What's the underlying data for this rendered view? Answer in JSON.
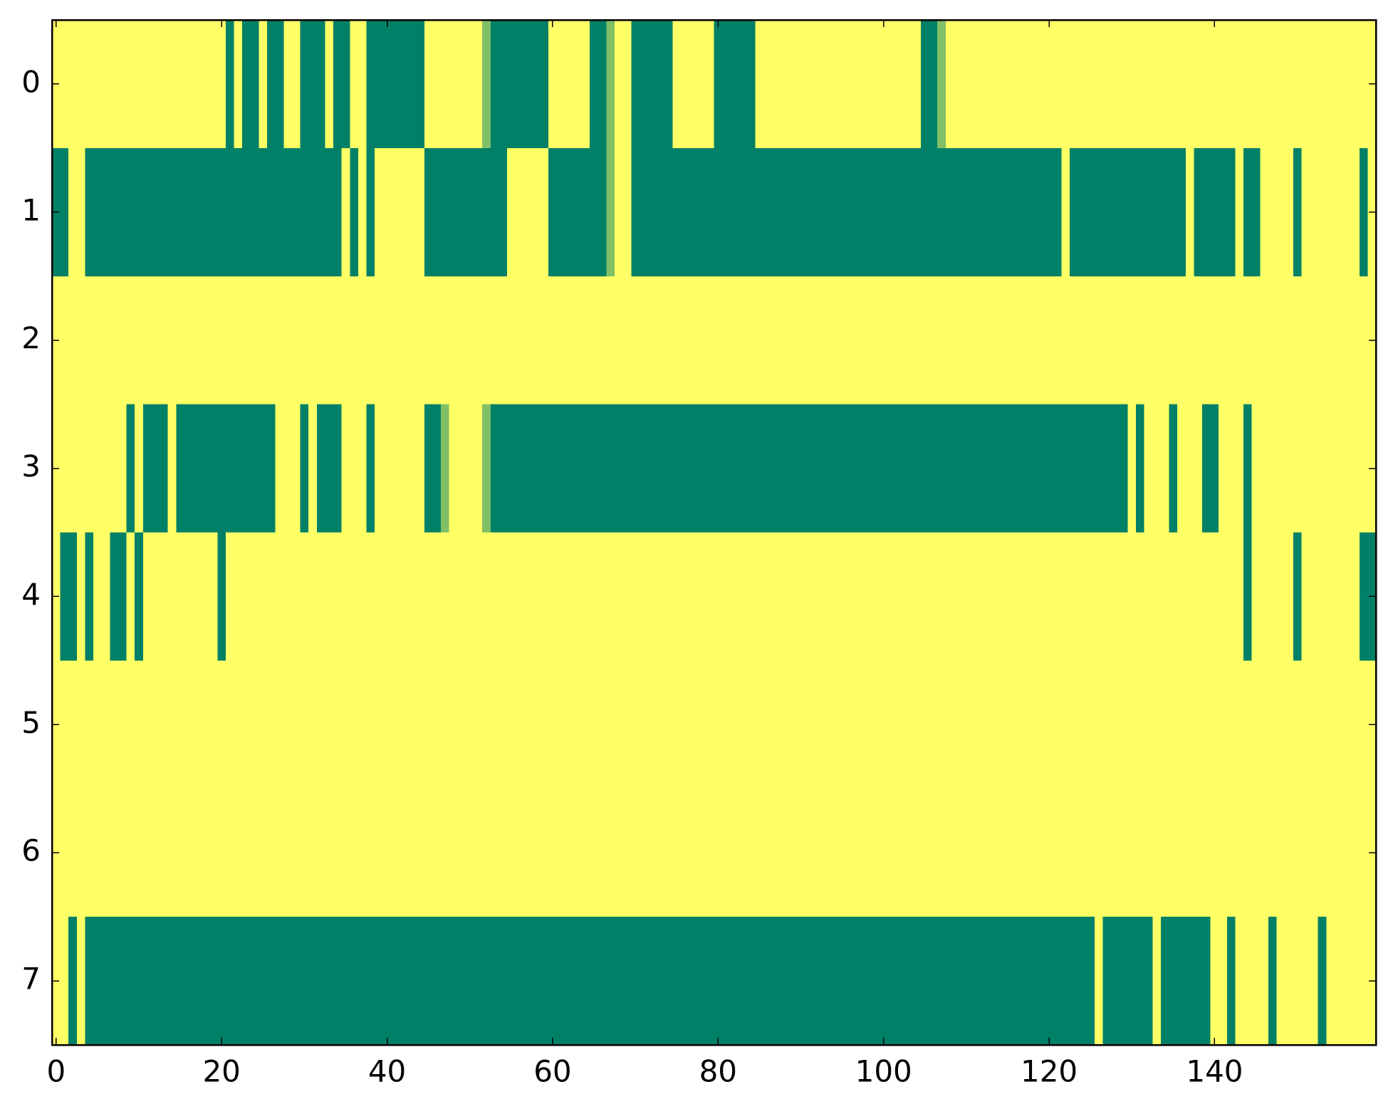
{
  "chart_data": {
    "type": "heatmap",
    "cmap": "summer",
    "xlim": [
      -0.5,
      159.5
    ],
    "ylim": [
      7.5,
      -0.5
    ],
    "xticks": [
      0,
      20,
      40,
      60,
      80,
      100,
      120,
      140
    ],
    "yticks": [
      0,
      1,
      2,
      3,
      4,
      5,
      6,
      7
    ],
    "values": [
      [
        1,
        1,
        1,
        1,
        1,
        1,
        1,
        1,
        1,
        1,
        1,
        1,
        1,
        1,
        1,
        1,
        1,
        1,
        1,
        1,
        1,
        0,
        1,
        0,
        0,
        1,
        0,
        0,
        1,
        1,
        0,
        0,
        0,
        1,
        0,
        0,
        1,
        1,
        0,
        0,
        0,
        0,
        0,
        0,
        0,
        1,
        1,
        1,
        1,
        1,
        1,
        1,
        0.5,
        0,
        0,
        0,
        0,
        0,
        0,
        0,
        1,
        1,
        1,
        1,
        1,
        0,
        0,
        0.5,
        1,
        1,
        0,
        0,
        0,
        0,
        0,
        1,
        1,
        1,
        1,
        1,
        0,
        0,
        0,
        0,
        0,
        1,
        1,
        1,
        1,
        1,
        1,
        1,
        1,
        1,
        1,
        1,
        1,
        1,
        1,
        1,
        1,
        1,
        1,
        1,
        1,
        0,
        0,
        0.5,
        1,
        1,
        1,
        1,
        1,
        1,
        1,
        1,
        1,
        1,
        1,
        1,
        1,
        1,
        1,
        1,
        1,
        1,
        1,
        1,
        1,
        1,
        1,
        1,
        1,
        1,
        1,
        1,
        1,
        1,
        1,
        1,
        1,
        1,
        1,
        1,
        1,
        1,
        1,
        1,
        1,
        1,
        1,
        1,
        1,
        1,
        1,
        1,
        1,
        1,
        1,
        1
      ],
      [
        0,
        0,
        1,
        1,
        0,
        0,
        0,
        0,
        0,
        0,
        0,
        0,
        0,
        0,
        0,
        0,
        0,
        0,
        0,
        0,
        0,
        0,
        0,
        0,
        0,
        0,
        0,
        0,
        0,
        0,
        0,
        0,
        0,
        0,
        0,
        1,
        0,
        1,
        0,
        1,
        1,
        1,
        1,
        1,
        1,
        0,
        0,
        0,
        0,
        0,
        0,
        0,
        0,
        0,
        0,
        1,
        1,
        1,
        1,
        1,
        0,
        0,
        0,
        0,
        0,
        0,
        0,
        0.5,
        1,
        1,
        0,
        0,
        0,
        0,
        0,
        0,
        0,
        0,
        0,
        0,
        0,
        0,
        0,
        0,
        0,
        0,
        0,
        0,
        0,
        0,
        0,
        0,
        0,
        0,
        0,
        0,
        0,
        0,
        0,
        0,
        0,
        0,
        0,
        0,
        0,
        0,
        0,
        0,
        0,
        0,
        0,
        0,
        0,
        0,
        0,
        0,
        0,
        0,
        0,
        0,
        0,
        0,
        1,
        0,
        0,
        0,
        0,
        0,
        0,
        0,
        0,
        0,
        0,
        0,
        0,
        0,
        0,
        1,
        0,
        0,
        0,
        0,
        0,
        1,
        0,
        0,
        1,
        1,
        1,
        1,
        0,
        1,
        1,
        1,
        1,
        1,
        1,
        1,
        0,
        1
      ],
      [
        1,
        1,
        1,
        1,
        1,
        1,
        1,
        1,
        1,
        1,
        1,
        1,
        1,
        1,
        1,
        1,
        1,
        1,
        1,
        1,
        1,
        1,
        1,
        1,
        1,
        1,
        1,
        1,
        1,
        1,
        1,
        1,
        1,
        1,
        1,
        1,
        1,
        1,
        1,
        1,
        1,
        1,
        1,
        1,
        1,
        1,
        1,
        1,
        1,
        1,
        1,
        1,
        1,
        1,
        1,
        1,
        1,
        1,
        1,
        1,
        1,
        1,
        1,
        1,
        1,
        1,
        1,
        1,
        1,
        1,
        1,
        1,
        1,
        1,
        1,
        1,
        1,
        1,
        1,
        1,
        1,
        1,
        1,
        1,
        1,
        1,
        1,
        1,
        1,
        1,
        1,
        1,
        1,
        1,
        1,
        1,
        1,
        1,
        1,
        1,
        1,
        1,
        1,
        1,
        1,
        1,
        1,
        1,
        1,
        1,
        1,
        1,
        1,
        1,
        1,
        1,
        1,
        1,
        1,
        1,
        1,
        1,
        1,
        1,
        1,
        1,
        1,
        1,
        1,
        1,
        1,
        1,
        1,
        1,
        1,
        1,
        1,
        1,
        1,
        1,
        1,
        1,
        1,
        1,
        1,
        1,
        1,
        1,
        1,
        1,
        1,
        1,
        1,
        1,
        1,
        1,
        1,
        1,
        1,
        1
      ],
      [
        1,
        1,
        1,
        1,
        1,
        1,
        1,
        1,
        1,
        0,
        1,
        0,
        0,
        0,
        1,
        0,
        0,
        0,
        0,
        0,
        0,
        0,
        0,
        0,
        0,
        0,
        0,
        1,
        1,
        1,
        0,
        1,
        0,
        0,
        0,
        1,
        1,
        1,
        0,
        1,
        1,
        1,
        1,
        1,
        1,
        0,
        0,
        0.5,
        1,
        1,
        1,
        1,
        0.5,
        0,
        0,
        0,
        0,
        0,
        0,
        0,
        0,
        0,
        0,
        0,
        0,
        0,
        0,
        0,
        0,
        0,
        0,
        0,
        0,
        0,
        0,
        0,
        0,
        0,
        0,
        0,
        0,
        0,
        0,
        0,
        0,
        0,
        0,
        0,
        0,
        0,
        0,
        0,
        0,
        0,
        0,
        0,
        0,
        0,
        0,
        0,
        0,
        0,
        0,
        0,
        0,
        0,
        0,
        0,
        0,
        0,
        0,
        0,
        0,
        0,
        0,
        0,
        0,
        0,
        0,
        0,
        0,
        0,
        0,
        0,
        0,
        0,
        0,
        0,
        0,
        0,
        1,
        0,
        1,
        1,
        1,
        0,
        1,
        1,
        1,
        0,
        0,
        1,
        1,
        1,
        0,
        1,
        1,
        1,
        1,
        1,
        1,
        1,
        1,
        1,
        1,
        1,
        1,
        1,
        1,
        1
      ],
      [
        1,
        0,
        0,
        1,
        0,
        1,
        1,
        0,
        0,
        1,
        0,
        1,
        1,
        1,
        1,
        1,
        1,
        1,
        1,
        1,
        0,
        1,
        1,
        1,
        1,
        1,
        1,
        1,
        1,
        1,
        1,
        1,
        1,
        1,
        1,
        1,
        1,
        1,
        1,
        1,
        1,
        1,
        1,
        1,
        1,
        1,
        1,
        1,
        1,
        1,
        1,
        1,
        1,
        1,
        1,
        1,
        1,
        1,
        1,
        1,
        1,
        1,
        1,
        1,
        1,
        1,
        1,
        1,
        1,
        1,
        1,
        1,
        1,
        1,
        1,
        1,
        1,
        1,
        1,
        1,
        1,
        1,
        1,
        1,
        1,
        1,
        1,
        1,
        1,
        1,
        1,
        1,
        1,
        1,
        1,
        1,
        1,
        1,
        1,
        1,
        1,
        1,
        1,
        1,
        1,
        1,
        1,
        1,
        1,
        1,
        1,
        1,
        1,
        1,
        1,
        1,
        1,
        1,
        1,
        1,
        1,
        1,
        1,
        1,
        1,
        1,
        1,
        1,
        1,
        1,
        1,
        1,
        1,
        1,
        1,
        1,
        1,
        1,
        1,
        1,
        1,
        1,
        1,
        1,
        0,
        1,
        1,
        1,
        1,
        1,
        0,
        1,
        1,
        1,
        1,
        1,
        1,
        1,
        0,
        0
      ],
      [
        1,
        1,
        1,
        1,
        1,
        1,
        1,
        1,
        1,
        1,
        1,
        1,
        1,
        1,
        1,
        1,
        1,
        1,
        1,
        1,
        1,
        1,
        1,
        1,
        1,
        1,
        1,
        1,
        1,
        1,
        1,
        1,
        1,
        1,
        1,
        1,
        1,
        1,
        1,
        1,
        1,
        1,
        1,
        1,
        1,
        1,
        1,
        1,
        1,
        1,
        1,
        1,
        1,
        1,
        1,
        1,
        1,
        1,
        1,
        1,
        1,
        1,
        1,
        1,
        1,
        1,
        1,
        1,
        1,
        1,
        1,
        1,
        1,
        1,
        1,
        1,
        1,
        1,
        1,
        1,
        1,
        1,
        1,
        1,
        1,
        1,
        1,
        1,
        1,
        1,
        1,
        1,
        1,
        1,
        1,
        1,
        1,
        1,
        1,
        1,
        1,
        1,
        1,
        1,
        1,
        1,
        1,
        1,
        1,
        1,
        1,
        1,
        1,
        1,
        1,
        1,
        1,
        1,
        1,
        1,
        1,
        1,
        1,
        1,
        1,
        1,
        1,
        1,
        1,
        1,
        1,
        1,
        1,
        1,
        1,
        1,
        1,
        1,
        1,
        1,
        1,
        1,
        1,
        1,
        1,
        1,
        1,
        1,
        1,
        1,
        1,
        1,
        1,
        1,
        1,
        1,
        1,
        1,
        1,
        1
      ],
      [
        1,
        1,
        1,
        1,
        1,
        1,
        1,
        1,
        1,
        1,
        1,
        1,
        1,
        1,
        1,
        1,
        1,
        1,
        1,
        1,
        1,
        1,
        1,
        1,
        1,
        1,
        1,
        1,
        1,
        1,
        1,
        1,
        1,
        1,
        1,
        1,
        1,
        1,
        1,
        1,
        1,
        1,
        1,
        1,
        1,
        1,
        1,
        1,
        1,
        1,
        1,
        1,
        1,
        1,
        1,
        1,
        1,
        1,
        1,
        1,
        1,
        1,
        1,
        1,
        1,
        1,
        1,
        1,
        1,
        1,
        1,
        1,
        1,
        1,
        1,
        1,
        1,
        1,
        1,
        1,
        1,
        1,
        1,
        1,
        1,
        1,
        1,
        1,
        1,
        1,
        1,
        1,
        1,
        1,
        1,
        1,
        1,
        1,
        1,
        1,
        1,
        1,
        1,
        1,
        1,
        1,
        1,
        1,
        1,
        1,
        1,
        1,
        1,
        1,
        1,
        1,
        1,
        1,
        1,
        1,
        1,
        1,
        1,
        1,
        1,
        1,
        1,
        1,
        1,
        1,
        1,
        1,
        1,
        1,
        1,
        1,
        1,
        1,
        1,
        1,
        1,
        1,
        1,
        1,
        1,
        1,
        1,
        1,
        1,
        1,
        1,
        1,
        1,
        1,
        1,
        1,
        1,
        1,
        1,
        1
      ],
      [
        1,
        1,
        0,
        1,
        0,
        0,
        0,
        0,
        0,
        0,
        0,
        0,
        0,
        0,
        0,
        0,
        0,
        0,
        0,
        0,
        0,
        0,
        0,
        0,
        0,
        0,
        0,
        0,
        0,
        0,
        0,
        0,
        0,
        0,
        0,
        0,
        0,
        0,
        0,
        0,
        0,
        0,
        0,
        0,
        0,
        0,
        0,
        0,
        0,
        0,
        0,
        0,
        0,
        0,
        0,
        0,
        0,
        0,
        0,
        0,
        0,
        0,
        0,
        0,
        0,
        0,
        0,
        0,
        0,
        0,
        0,
        0,
        0,
        0,
        0,
        0,
        0,
        0,
        0,
        0,
        0,
        0,
        0,
        0,
        0,
        0,
        0,
        0,
        0,
        0,
        0,
        0,
        0,
        0,
        0,
        0,
        0,
        0,
        0,
        0,
        0,
        0,
        0,
        0,
        0,
        0,
        0,
        0,
        0,
        0,
        0,
        0,
        0,
        0,
        0,
        0,
        0,
        0,
        0,
        0,
        0,
        0,
        0,
        0,
        0,
        0,
        1,
        0,
        0,
        0,
        0,
        0,
        0,
        1,
        0,
        0,
        0,
        0,
        0,
        0,
        1,
        1,
        0,
        1,
        1,
        1,
        1,
        0,
        1,
        1,
        1,
        1,
        1,
        0,
        1,
        1,
        1,
        1,
        1,
        1
      ]
    ]
  }
}
